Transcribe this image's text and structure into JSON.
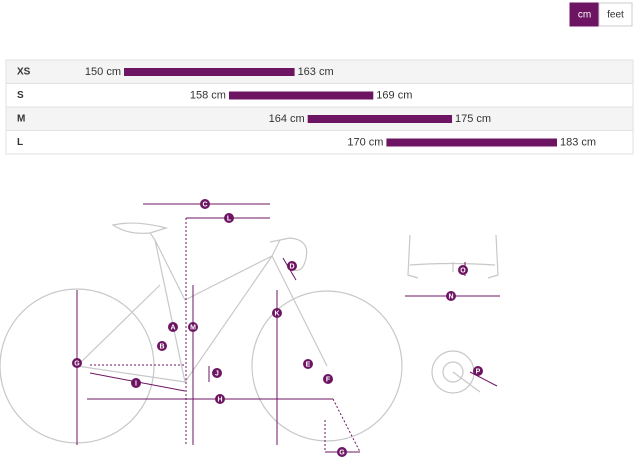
{
  "units": [
    "cm",
    "feet"
  ],
  "chart_data": {
    "type": "range-bar",
    "categories": [
      "XS",
      "S",
      "M",
      "L"
    ],
    "values": [
      [
        150,
        163
      ],
      [
        158,
        169
      ],
      [
        164,
        175
      ],
      [
        170,
        183
      ]
    ],
    "value_labels": [
      [
        "150 cm",
        "163 cm"
      ],
      [
        "158 cm",
        "169 cm"
      ],
      [
        "164 cm",
        "175 cm"
      ],
      [
        "170 cm",
        "183 cm"
      ]
    ],
    "color": "#6d1463"
  },
  "diagram": {
    "labels": [
      "C",
      "L",
      "D",
      "A",
      "M",
      "K",
      "B",
      "E",
      "J",
      "F",
      "I",
      "G",
      "H",
      "G",
      "O",
      "N",
      "P"
    ]
  }
}
